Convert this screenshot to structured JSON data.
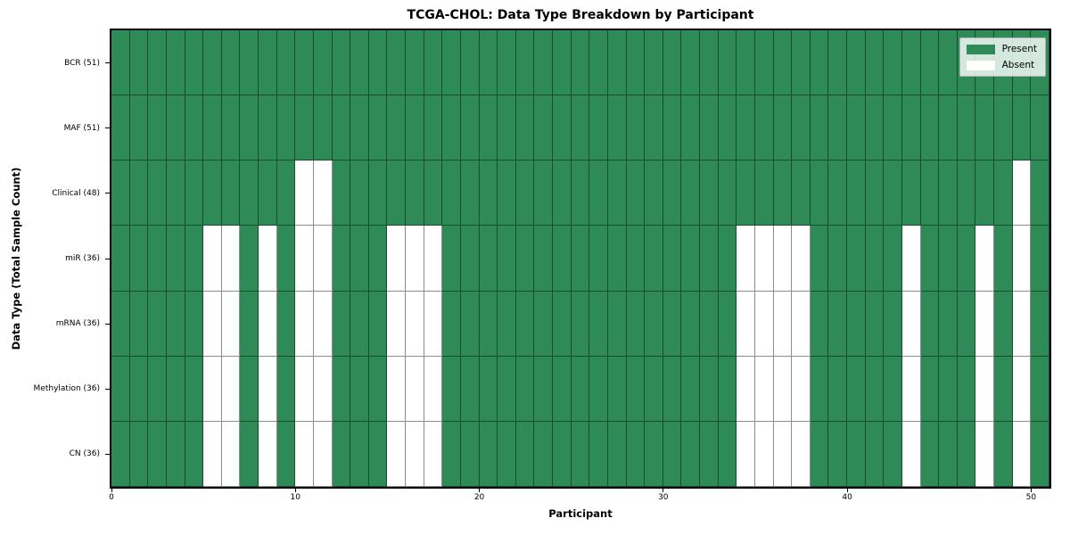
{
  "title": "TCGA-CHOL: Data Type Breakdown by Participant",
  "colors": {
    "present": "#2e8b57",
    "absent": "#ffffff",
    "grid_line": "rgba(0,0,0,0.45)",
    "spine": "#000000",
    "legend_bg": "rgba(255,255,255,0.8)",
    "legend_border": "#b0b0b0"
  },
  "chart_data": {
    "type": "heatmap",
    "title": "TCGA-CHOL: Data Type Breakdown by Participant",
    "xlabel": "Participant",
    "ylabel": "Data Type (Total Sample Count)",
    "x_range": [
      0,
      51
    ],
    "n_participants": 51,
    "x_ticks": [
      0,
      10,
      20,
      30,
      40,
      50
    ],
    "grid": true,
    "legend_position": "upper right",
    "cell_states": [
      "Present",
      "Absent"
    ],
    "rows": [
      {
        "label": "BCR (51)",
        "data_type": "BCR",
        "present_count": 51,
        "absent_participants": []
      },
      {
        "label": "MAF (51)",
        "data_type": "MAF",
        "present_count": 51,
        "absent_participants": []
      },
      {
        "label": "Clinical (48)",
        "data_type": "Clinical",
        "present_count": 48,
        "absent_participants": [
          10,
          11,
          49
        ]
      },
      {
        "label": "miR (36)",
        "data_type": "miR",
        "present_count": 36,
        "absent_participants": [
          5,
          6,
          8,
          10,
          11,
          15,
          16,
          17,
          34,
          35,
          36,
          37,
          43,
          47,
          49
        ]
      },
      {
        "label": "mRNA (36)",
        "data_type": "mRNA",
        "present_count": 36,
        "absent_participants": [
          5,
          6,
          8,
          10,
          11,
          15,
          16,
          17,
          34,
          35,
          36,
          37,
          43,
          47,
          49
        ]
      },
      {
        "label": "Methylation (36)",
        "data_type": "Methylation",
        "present_count": 36,
        "absent_participants": [
          5,
          6,
          8,
          10,
          11,
          15,
          16,
          17,
          34,
          35,
          36,
          37,
          43,
          47,
          49
        ]
      },
      {
        "label": "CN (36)",
        "data_type": "CN",
        "present_count": 36,
        "absent_participants": [
          5,
          6,
          8,
          10,
          11,
          15,
          16,
          17,
          34,
          35,
          36,
          37,
          43,
          47,
          49
        ]
      }
    ],
    "legend": [
      {
        "label": "Present",
        "color": "#2e8b57"
      },
      {
        "label": "Absent",
        "color": "#ffffff"
      }
    ]
  }
}
